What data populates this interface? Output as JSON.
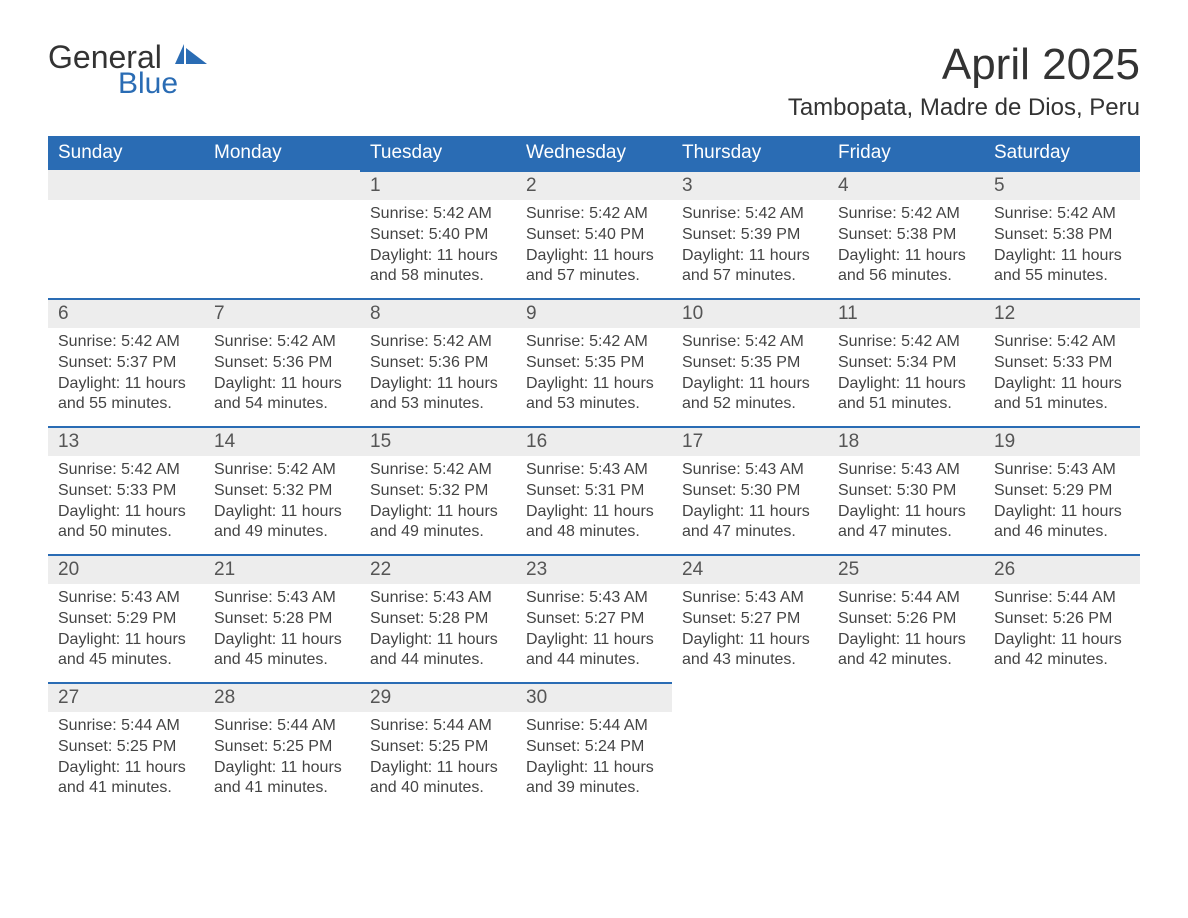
{
  "logo": {
    "text1": "General",
    "text2": "Blue"
  },
  "title": "April 2025",
  "subtitle": "Tambopata, Madre de Dios, Peru",
  "colors": {
    "header_bg": "#2a6cb4",
    "header_text": "#ffffff",
    "daynum_bg": "#ededed",
    "daynum_border": "#2a6cb4",
    "body_bg": "#ffffff",
    "text": "#333333",
    "logo_accent": "#2a6cb4"
  },
  "weekdays": [
    "Sunday",
    "Monday",
    "Tuesday",
    "Wednesday",
    "Thursday",
    "Friday",
    "Saturday"
  ],
  "weeks": [
    [
      null,
      null,
      {
        "num": "1",
        "sunrise": "Sunrise: 5:42 AM",
        "sunset": "Sunset: 5:40 PM",
        "daylight": "Daylight: 11 hours and 58 minutes."
      },
      {
        "num": "2",
        "sunrise": "Sunrise: 5:42 AM",
        "sunset": "Sunset: 5:40 PM",
        "daylight": "Daylight: 11 hours and 57 minutes."
      },
      {
        "num": "3",
        "sunrise": "Sunrise: 5:42 AM",
        "sunset": "Sunset: 5:39 PM",
        "daylight": "Daylight: 11 hours and 57 minutes."
      },
      {
        "num": "4",
        "sunrise": "Sunrise: 5:42 AM",
        "sunset": "Sunset: 5:38 PM",
        "daylight": "Daylight: 11 hours and 56 minutes."
      },
      {
        "num": "5",
        "sunrise": "Sunrise: 5:42 AM",
        "sunset": "Sunset: 5:38 PM",
        "daylight": "Daylight: 11 hours and 55 minutes."
      }
    ],
    [
      {
        "num": "6",
        "sunrise": "Sunrise: 5:42 AM",
        "sunset": "Sunset: 5:37 PM",
        "daylight": "Daylight: 11 hours and 55 minutes."
      },
      {
        "num": "7",
        "sunrise": "Sunrise: 5:42 AM",
        "sunset": "Sunset: 5:36 PM",
        "daylight": "Daylight: 11 hours and 54 minutes."
      },
      {
        "num": "8",
        "sunrise": "Sunrise: 5:42 AM",
        "sunset": "Sunset: 5:36 PM",
        "daylight": "Daylight: 11 hours and 53 minutes."
      },
      {
        "num": "9",
        "sunrise": "Sunrise: 5:42 AM",
        "sunset": "Sunset: 5:35 PM",
        "daylight": "Daylight: 11 hours and 53 minutes."
      },
      {
        "num": "10",
        "sunrise": "Sunrise: 5:42 AM",
        "sunset": "Sunset: 5:35 PM",
        "daylight": "Daylight: 11 hours and 52 minutes."
      },
      {
        "num": "11",
        "sunrise": "Sunrise: 5:42 AM",
        "sunset": "Sunset: 5:34 PM",
        "daylight": "Daylight: 11 hours and 51 minutes."
      },
      {
        "num": "12",
        "sunrise": "Sunrise: 5:42 AM",
        "sunset": "Sunset: 5:33 PM",
        "daylight": "Daylight: 11 hours and 51 minutes."
      }
    ],
    [
      {
        "num": "13",
        "sunrise": "Sunrise: 5:42 AM",
        "sunset": "Sunset: 5:33 PM",
        "daylight": "Daylight: 11 hours and 50 minutes."
      },
      {
        "num": "14",
        "sunrise": "Sunrise: 5:42 AM",
        "sunset": "Sunset: 5:32 PM",
        "daylight": "Daylight: 11 hours and 49 minutes."
      },
      {
        "num": "15",
        "sunrise": "Sunrise: 5:42 AM",
        "sunset": "Sunset: 5:32 PM",
        "daylight": "Daylight: 11 hours and 49 minutes."
      },
      {
        "num": "16",
        "sunrise": "Sunrise: 5:43 AM",
        "sunset": "Sunset: 5:31 PM",
        "daylight": "Daylight: 11 hours and 48 minutes."
      },
      {
        "num": "17",
        "sunrise": "Sunrise: 5:43 AM",
        "sunset": "Sunset: 5:30 PM",
        "daylight": "Daylight: 11 hours and 47 minutes."
      },
      {
        "num": "18",
        "sunrise": "Sunrise: 5:43 AM",
        "sunset": "Sunset: 5:30 PM",
        "daylight": "Daylight: 11 hours and 47 minutes."
      },
      {
        "num": "19",
        "sunrise": "Sunrise: 5:43 AM",
        "sunset": "Sunset: 5:29 PM",
        "daylight": "Daylight: 11 hours and 46 minutes."
      }
    ],
    [
      {
        "num": "20",
        "sunrise": "Sunrise: 5:43 AM",
        "sunset": "Sunset: 5:29 PM",
        "daylight": "Daylight: 11 hours and 45 minutes."
      },
      {
        "num": "21",
        "sunrise": "Sunrise: 5:43 AM",
        "sunset": "Sunset: 5:28 PM",
        "daylight": "Daylight: 11 hours and 45 minutes."
      },
      {
        "num": "22",
        "sunrise": "Sunrise: 5:43 AM",
        "sunset": "Sunset: 5:28 PM",
        "daylight": "Daylight: 11 hours and 44 minutes."
      },
      {
        "num": "23",
        "sunrise": "Sunrise: 5:43 AM",
        "sunset": "Sunset: 5:27 PM",
        "daylight": "Daylight: 11 hours and 44 minutes."
      },
      {
        "num": "24",
        "sunrise": "Sunrise: 5:43 AM",
        "sunset": "Sunset: 5:27 PM",
        "daylight": "Daylight: 11 hours and 43 minutes."
      },
      {
        "num": "25",
        "sunrise": "Sunrise: 5:44 AM",
        "sunset": "Sunset: 5:26 PM",
        "daylight": "Daylight: 11 hours and 42 minutes."
      },
      {
        "num": "26",
        "sunrise": "Sunrise: 5:44 AM",
        "sunset": "Sunset: 5:26 PM",
        "daylight": "Daylight: 11 hours and 42 minutes."
      }
    ],
    [
      {
        "num": "27",
        "sunrise": "Sunrise: 5:44 AM",
        "sunset": "Sunset: 5:25 PM",
        "daylight": "Daylight: 11 hours and 41 minutes."
      },
      {
        "num": "28",
        "sunrise": "Sunrise: 5:44 AM",
        "sunset": "Sunset: 5:25 PM",
        "daylight": "Daylight: 11 hours and 41 minutes."
      },
      {
        "num": "29",
        "sunrise": "Sunrise: 5:44 AM",
        "sunset": "Sunset: 5:25 PM",
        "daylight": "Daylight: 11 hours and 40 minutes."
      },
      {
        "num": "30",
        "sunrise": "Sunrise: 5:44 AM",
        "sunset": "Sunset: 5:24 PM",
        "daylight": "Daylight: 11 hours and 39 minutes."
      },
      null,
      null,
      null
    ]
  ]
}
